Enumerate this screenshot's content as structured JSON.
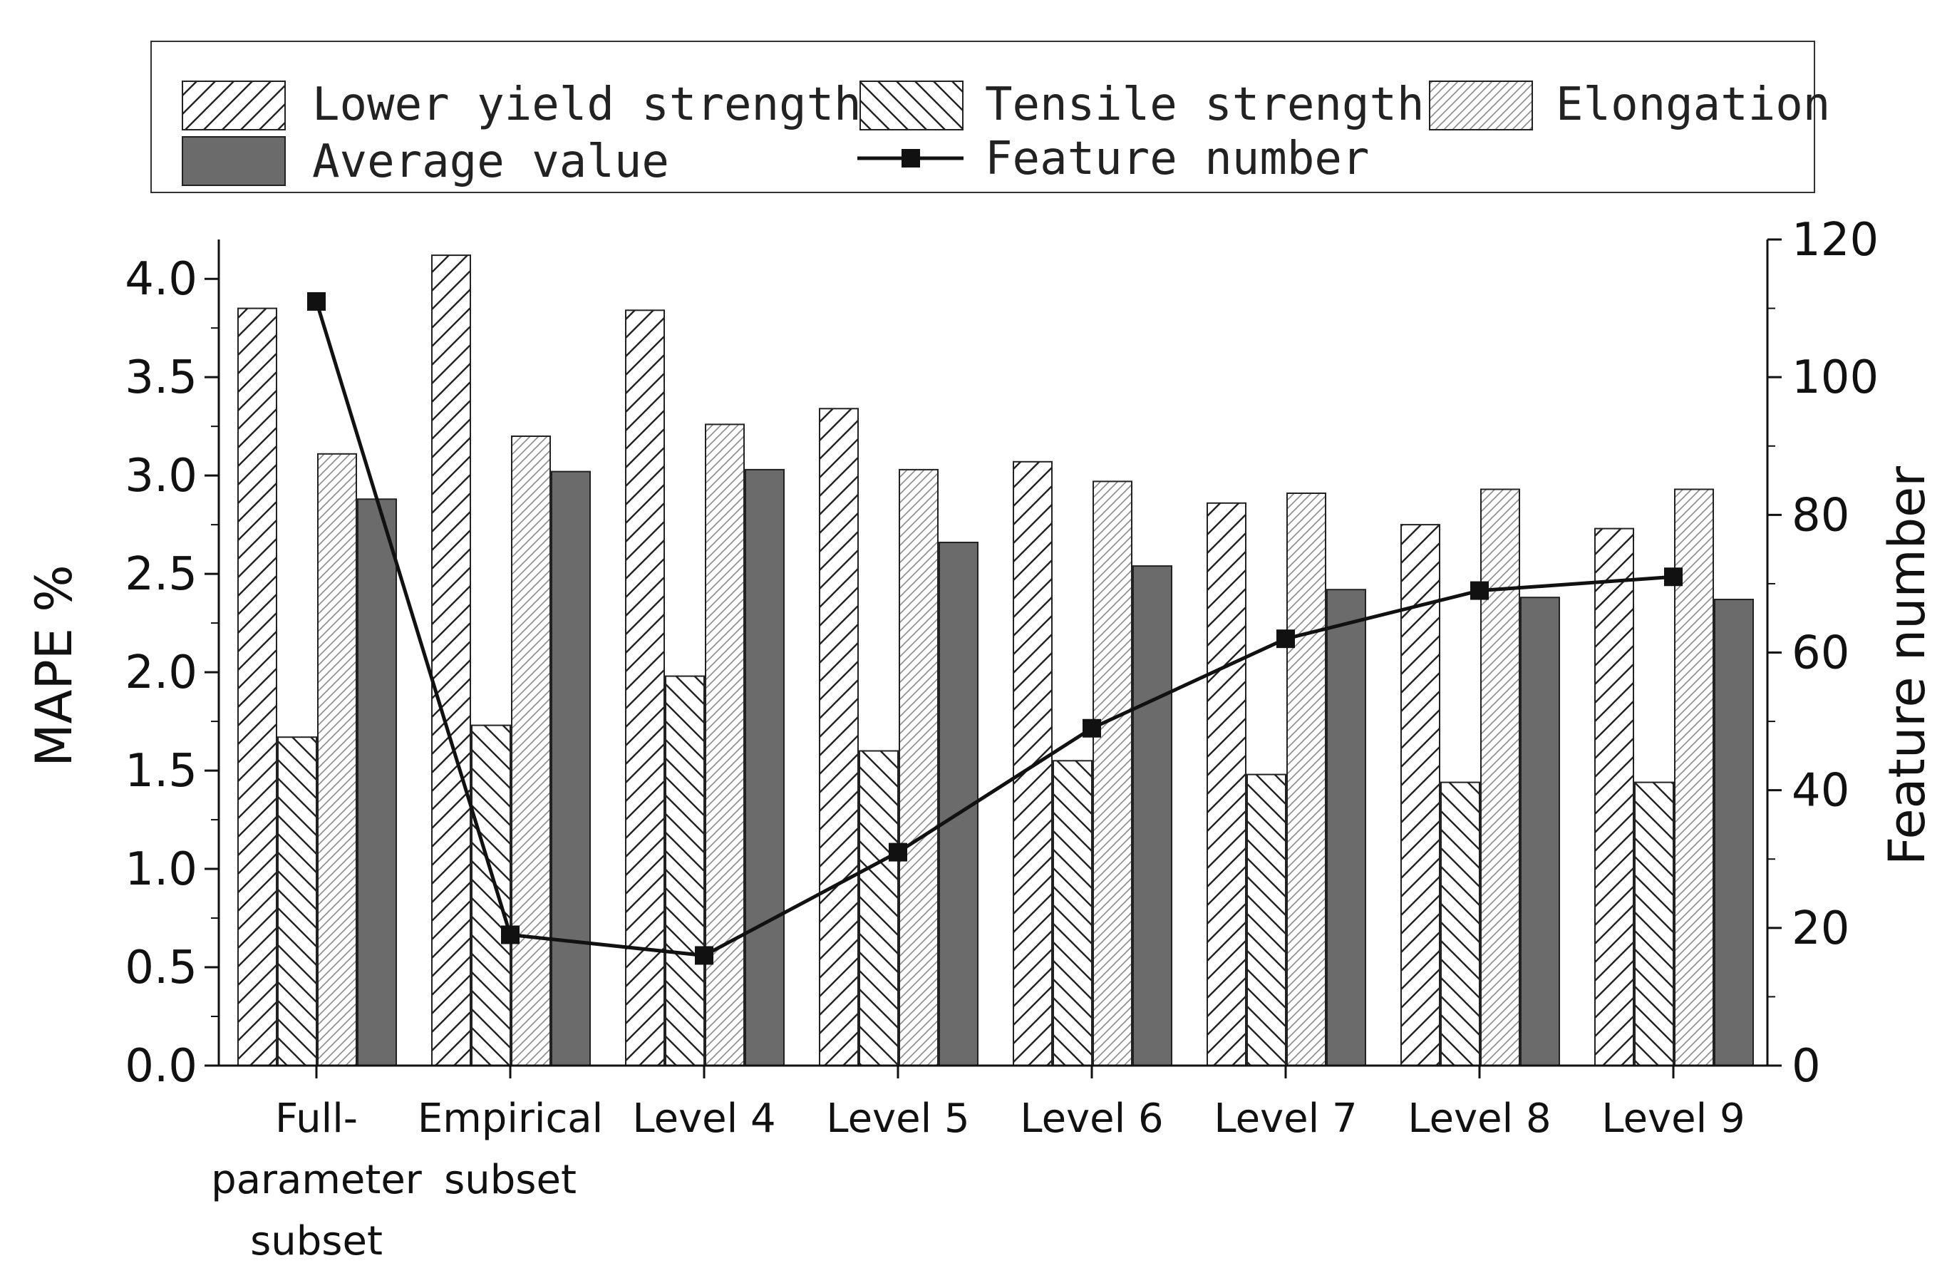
{
  "chart_data": {
    "type": "bar",
    "title": "",
    "categories": [
      [
        "Full-",
        "parameter",
        "subset"
      ],
      [
        "Empirical",
        "subset"
      ],
      [
        "Level 4"
      ],
      [
        "Level 5"
      ],
      [
        "Level 6"
      ],
      [
        "Level 7"
      ],
      [
        "Level 8"
      ],
      [
        "Level 9"
      ]
    ],
    "series": [
      {
        "name": "Lower yield strength",
        "pattern": "hatch-fwd",
        "values": [
          3.85,
          4.12,
          3.84,
          3.34,
          3.07,
          2.86,
          2.75,
          2.73
        ]
      },
      {
        "name": "Tensile strength",
        "pattern": "hatch-back",
        "values": [
          1.67,
          1.73,
          1.98,
          1.6,
          1.55,
          1.48,
          1.44,
          1.44
        ]
      },
      {
        "name": "Elongation",
        "pattern": "hatch-fine",
        "values": [
          3.11,
          3.2,
          3.26,
          3.03,
          2.97,
          2.91,
          2.93,
          2.93
        ]
      },
      {
        "name": "Average value",
        "pattern": "solid",
        "color": "#6b6b6b",
        "values": [
          2.88,
          3.02,
          3.03,
          2.66,
          2.54,
          2.42,
          2.38,
          2.37
        ]
      }
    ],
    "line_series": {
      "name": "Feature number",
      "axis": "right",
      "values": [
        111,
        19,
        16,
        31,
        49,
        62,
        69,
        71
      ]
    },
    "ylabel": "MAPE %",
    "y2label": "Feature number",
    "ylim": [
      0,
      4.2
    ],
    "y2lim": [
      0,
      120
    ],
    "yticks": [
      "0.0",
      "0.5",
      "1.0",
      "1.5",
      "2.0",
      "2.5",
      "3.0",
      "3.5",
      "4.0"
    ],
    "y2ticks": [
      "0",
      "20",
      "40",
      "60",
      "80",
      "100",
      "120"
    ],
    "legend_position": "top"
  }
}
